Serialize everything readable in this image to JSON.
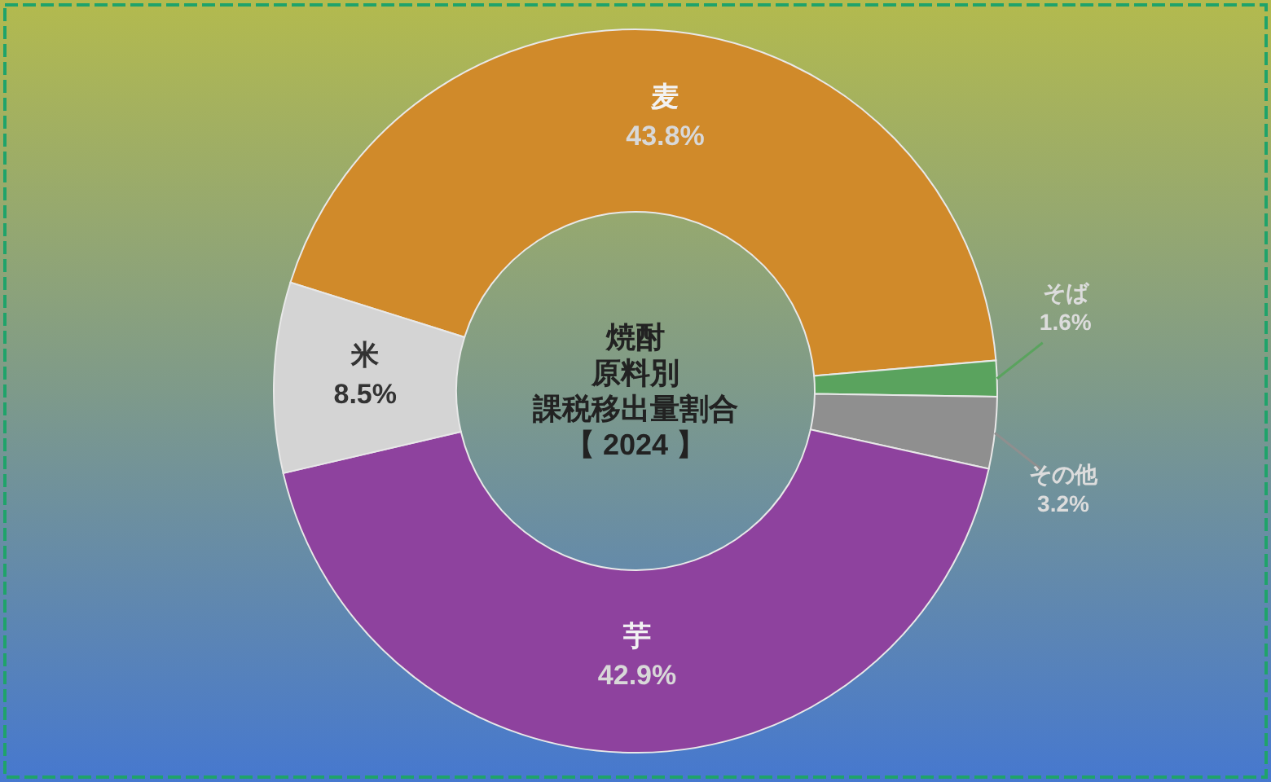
{
  "chart_data": {
    "type": "donut",
    "title": "焼酎原料別課税移出量割合",
    "subtitle": "【 2024 】",
    "categories": [
      "麦",
      "そば",
      "その他",
      "芋",
      "米"
    ],
    "values": [
      43.8,
      1.6,
      3.2,
      42.9,
      8.5
    ],
    "value_labels": [
      "43.8%",
      "1.6%",
      "3.2%",
      "42.9%",
      "8.5%"
    ],
    "colors": [
      "#d08a2a",
      "#5aa35e",
      "#8f8f8f",
      "#8e429e",
      "#d4d4d4"
    ]
  }
}
